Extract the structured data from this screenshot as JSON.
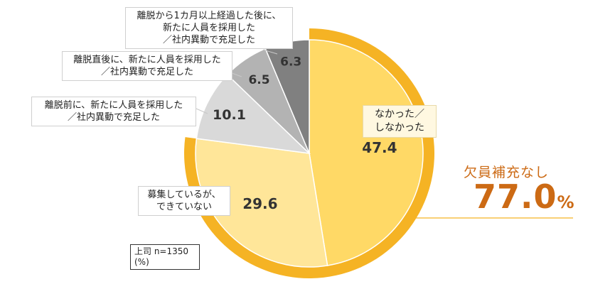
{
  "chart_data": {
    "type": "pie",
    "categories": [
      "なかった／しなかった",
      "募集しているが、できていない",
      "離脱前に、新たに人員を採用した／社内異動で充足した",
      "離脱直後に、新たに人員を採用した／社内異動で充足した",
      "離脱から1カ月以上経過した後に、新たに人員を採用した／社内異動で充足した"
    ],
    "values": [
      47.4,
      29.6,
      10.1,
      6.5,
      6.3
    ],
    "value_labels": [
      "47.4",
      "29.6",
      "10.1",
      "6.5",
      "6.3"
    ],
    "colors": [
      "#ffd966",
      "#ffe699",
      "#d9d9d9",
      "#b3b3b3",
      "#808080"
    ],
    "highlight_ring_color": "#f5b324",
    "label_color": "#333333"
  },
  "labels": {
    "nakatta": [
      "なかった／",
      "しなかった"
    ],
    "boshu": [
      "募集しているが、",
      "できていない"
    ],
    "mae": [
      "離脱前に、新たに人員を採用した",
      "／社内異動で充足した"
    ],
    "chokugo": [
      "離脱直後に、新たに人員を採用した",
      "／社内異動で充足した"
    ],
    "ikkagetsu": [
      "離脱から1カ月以上経過した後に、",
      "新たに人員を採用した",
      "／社内異動で充足した"
    ]
  },
  "summary": {
    "label": "欠員補充なし",
    "value": "77.0",
    "unit": "%",
    "color": "#cc6a14"
  },
  "note": {
    "line1": "上司 n=1350",
    "line2": "(%)"
  }
}
